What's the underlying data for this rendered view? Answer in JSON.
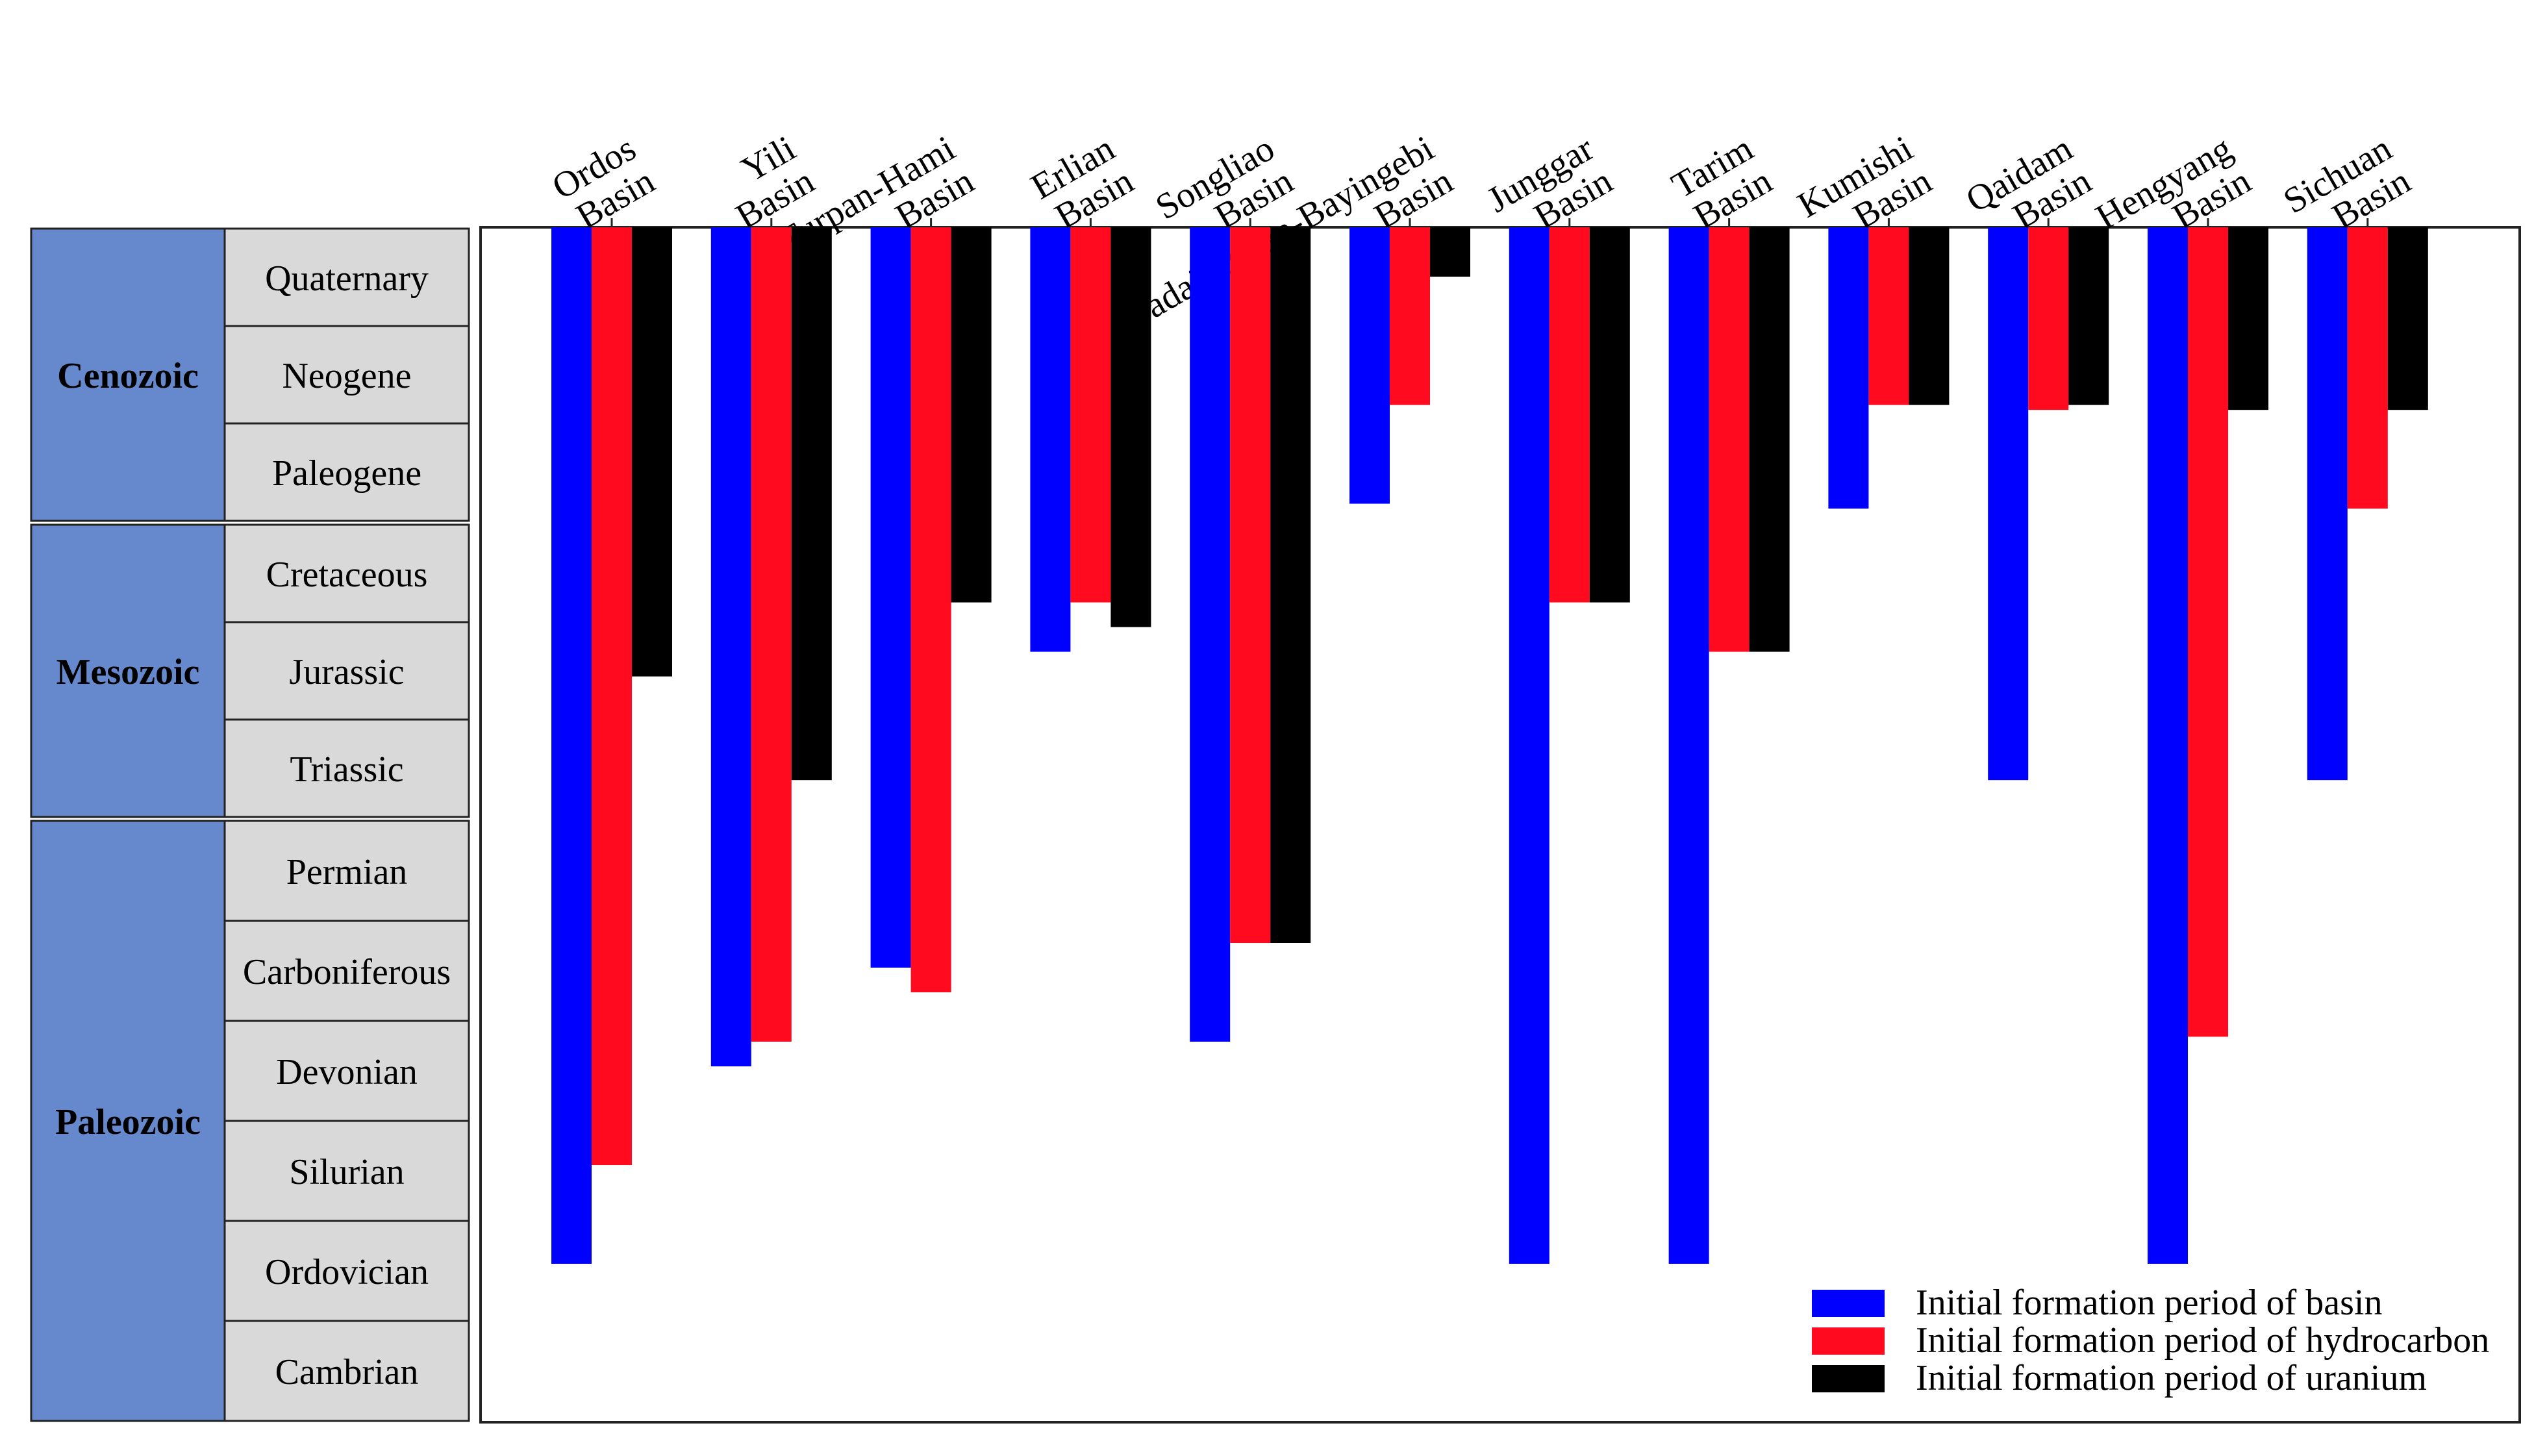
{
  "chart_data": {
    "type": "bar",
    "orientation": "downward bars from top axis",
    "title": "",
    "categories": [
      "Ordos Basin",
      "Yili Basin",
      "Turpan-Hami Basin",
      "Erlian Basin",
      "Songliao Basin",
      "Badain Jaran-Bayingebi Basin",
      "Junggar Basin",
      "Tarim Basin",
      "Kumishi Basin",
      "Qaidam Basin",
      "Hengyang Basin",
      "Sichuan Basin"
    ],
    "category_labels": [
      [
        "Ordos",
        "Basin"
      ],
      [
        "Yili",
        "Basin"
      ],
      [
        "Turpan-Hami",
        "Basin"
      ],
      [
        "Erlian",
        "Basin"
      ],
      [
        "Songliao",
        "Basin"
      ],
      [
        "Badain Jaran-Bayingebi",
        "Basin"
      ],
      [
        "Junggar",
        "Basin"
      ],
      [
        "Tarim",
        "Basin"
      ],
      [
        "Kumishi",
        "Basin"
      ],
      [
        "Qaidam",
        "Basin"
      ],
      [
        "Hengyang",
        "Basin"
      ],
      [
        "Sichuan",
        "Basin"
      ]
    ],
    "y_axis": {
      "unit": "geologic period (depth of bar below top axis, in periods; 0 = top of Quaternary)",
      "range": [
        0,
        12
      ],
      "eras": [
        {
          "name": "Cenozoic",
          "periods": [
            "Quaternary",
            "Neogene",
            "Paleogene"
          ]
        },
        {
          "name": "Mesozoic",
          "periods": [
            "Cretaceous",
            "Jurassic",
            "Triassic"
          ]
        },
        {
          "name": "Paleozoic",
          "periods": [
            "Permian",
            "Carboniferous",
            "Devonian",
            "Silurian",
            "Ordovician",
            "Cambrian"
          ]
        }
      ]
    },
    "series": [
      {
        "name": "Initial formation period of basin",
        "color": "#0000ff",
        "values": [
          10.5,
          8.5,
          7.5,
          4.3,
          8.25,
          2.8,
          10.5,
          10.5,
          2.85,
          5.6,
          10.5,
          5.6
        ]
      },
      {
        "name": "Initial formation period of hydrocarbon",
        "color": "#ff0a1e",
        "values": [
          9.5,
          8.25,
          7.75,
          3.8,
          7.25,
          1.8,
          3.8,
          4.3,
          1.8,
          1.85,
          8.2,
          2.85
        ]
      },
      {
        "name": "Initial formation period of uranium",
        "color": "#000000",
        "values": [
          4.55,
          5.6,
          3.8,
          4.05,
          7.25,
          0.5,
          3.8,
          4.3,
          1.8,
          1.8,
          1.85,
          1.85
        ]
      }
    ],
    "legend": {
      "position": "bottom-right",
      "items": [
        "Initial formation period of basin",
        "Initial formation period of hydrocarbon",
        "Initial formation period of uranium"
      ]
    },
    "colors": {
      "era_fill": "#6688cc",
      "period_fill": "#d9d9d9",
      "basin": "#0000ff",
      "hydrocarbon": "#ff0a1e",
      "uranium": "#000000"
    }
  }
}
